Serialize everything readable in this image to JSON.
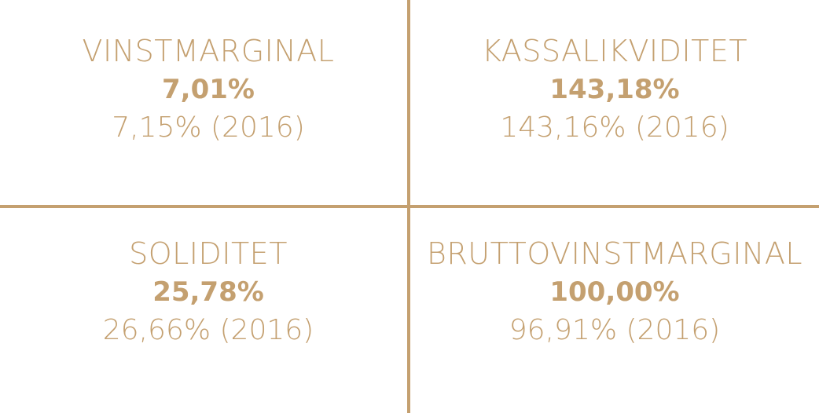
{
  "colors": {
    "accent": "#c4a070"
  },
  "metrics": [
    {
      "label": "VINSTMARGINAL",
      "value": "7,01%",
      "prior": "7,15% (2016)"
    },
    {
      "label": "KASSALIKVIDITET",
      "value": "143,18%",
      "prior": "143,16% (2016)"
    },
    {
      "label": "SOLIDITET",
      "value": "25,78%",
      "prior": "26,66% (2016)"
    },
    {
      "label": "BRUTTOVINSTMARGINAL",
      "value": "100,00%",
      "prior": "96,91% (2016)"
    }
  ]
}
